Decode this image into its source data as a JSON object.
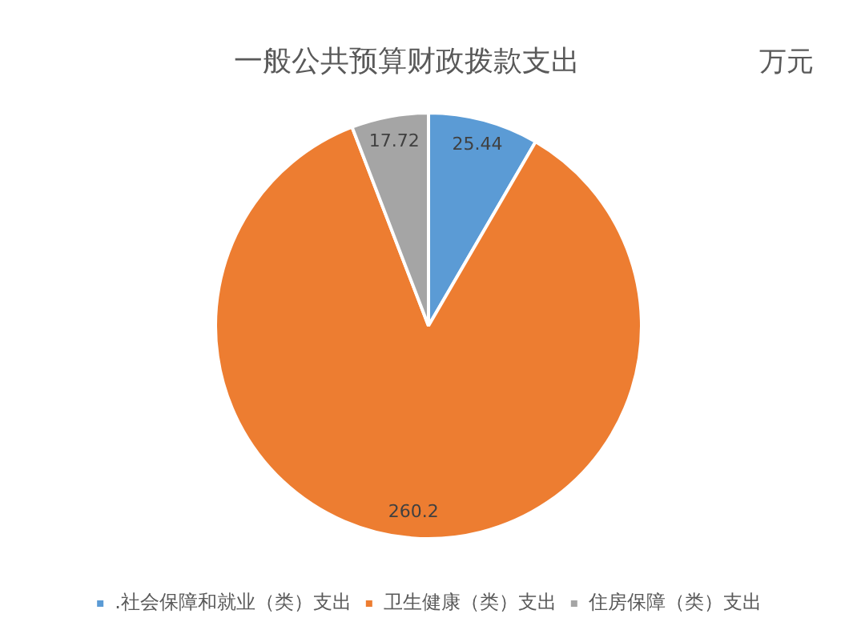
{
  "chart_data": {
    "type": "pie",
    "title": "一般公共预算财政拨款支出",
    "annotations": [
      "万元"
    ],
    "categories": [
      ".社会保障和就业（类）支出",
      "卫生健康（类）支出",
      "住房保障（类）支出"
    ],
    "values": [
      25.44,
      260.2,
      17.72
    ],
    "colors": [
      "#5b9bd5",
      "#ed7d31",
      "#a5a5a5"
    ],
    "data_labels": true,
    "legend": "bottom"
  }
}
